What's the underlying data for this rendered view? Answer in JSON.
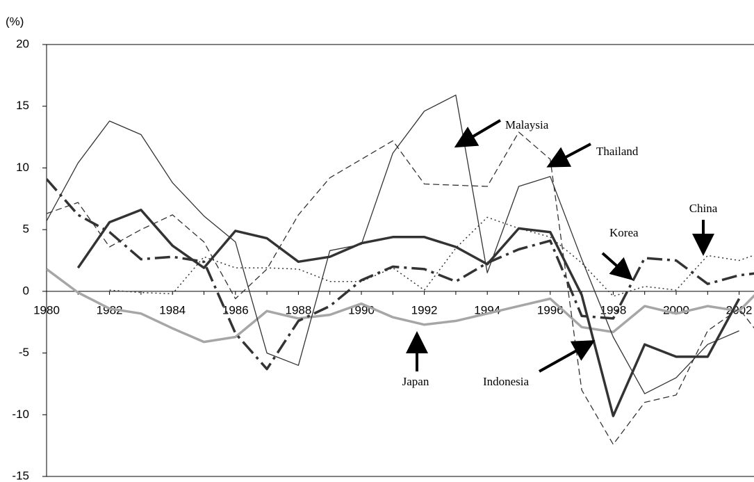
{
  "chart_data": {
    "type": "line",
    "y_label": "(%)",
    "categories": [
      "1980",
      null,
      "1982",
      null,
      "1984",
      null,
      "1986",
      null,
      "1988",
      null,
      "1990",
      null,
      "1992",
      null,
      "1994",
      null,
      "1996",
      null,
      "1998",
      null,
      "2000",
      null,
      "2002",
      null
    ],
    "ylim": [
      -15,
      20
    ],
    "yticks": [
      -15,
      -10,
      -5,
      0,
      5,
      10,
      15,
      20
    ],
    "series": [
      {
        "name": "Japan",
        "color": "#a6a6a6",
        "values": [
          1.8,
          -0.1,
          -1.4,
          -1.8,
          -3.0,
          -4.1,
          -3.7,
          -1.6,
          -2.2,
          -1.9,
          -1.0,
          -2.1,
          -2.7,
          -2.4,
          -1.8,
          -1.2,
          -0.6,
          -2.9,
          -3.3,
          -1.2,
          -1.8,
          -1.2,
          -1.6,
          1.0
        ]
      },
      {
        "name": "Indonesia",
        "color": "#333333",
        "values": [
          null,
          1.9,
          5.6,
          6.6,
          3.7,
          1.9,
          4.9,
          4.3,
          2.4,
          2.8,
          3.9,
          4.4,
          4.4,
          3.6,
          2.2,
          5.1,
          4.8,
          -0.3,
          -10.1,
          -4.3,
          -5.3,
          -5.3,
          -0.6,
          null
        ]
      },
      {
        "name": "Malaysia",
        "color": "#333333",
        "values": [
          5.7,
          10.4,
          13.8,
          12.7,
          8.8,
          6.1,
          4.0,
          -5.0,
          -6.0,
          3.3,
          3.8,
          11.2,
          14.6,
          15.9,
          1.5,
          8.5,
          9.3,
          2.6,
          -3.7,
          -8.3,
          -7.0,
          -4.3,
          -3.2,
          null
        ]
      },
      {
        "name": "Thailand",
        "color": "#333333",
        "values": [
          6.3,
          7.2,
          3.6,
          5.0,
          6.2,
          4.0,
          -0.6,
          1.8,
          6.2,
          9.2,
          10.7,
          12.2,
          8.7,
          8.6,
          8.5,
          12.9,
          10.7,
          -8.0,
          -12.4,
          -9.0,
          -8.4,
          -3.2,
          -1.4,
          -4.7
        ]
      },
      {
        "name": "Korea",
        "color": "#333333",
        "values": [
          9.1,
          6.2,
          4.8,
          2.6,
          2.8,
          2.4,
          -3.4,
          -6.3,
          -2.4,
          -1.2,
          0.9,
          2.0,
          1.8,
          0.8,
          2.3,
          3.4,
          4.1,
          -2.0,
          -2.2,
          2.7,
          2.5,
          0.6,
          1.3,
          1.6
        ]
      },
      {
        "name": "China",
        "color": "#333333",
        "values": [
          null,
          null,
          0.1,
          -0.1,
          -0.2,
          2.8,
          1.9,
          1.9,
          1.8,
          0.8,
          0.8,
          1.9,
          0.1,
          3.5,
          6.0,
          5.1,
          4.4,
          2.3,
          -0.4,
          0.4,
          0.1,
          2.9,
          2.5,
          3.4
        ]
      }
    ]
  }
}
